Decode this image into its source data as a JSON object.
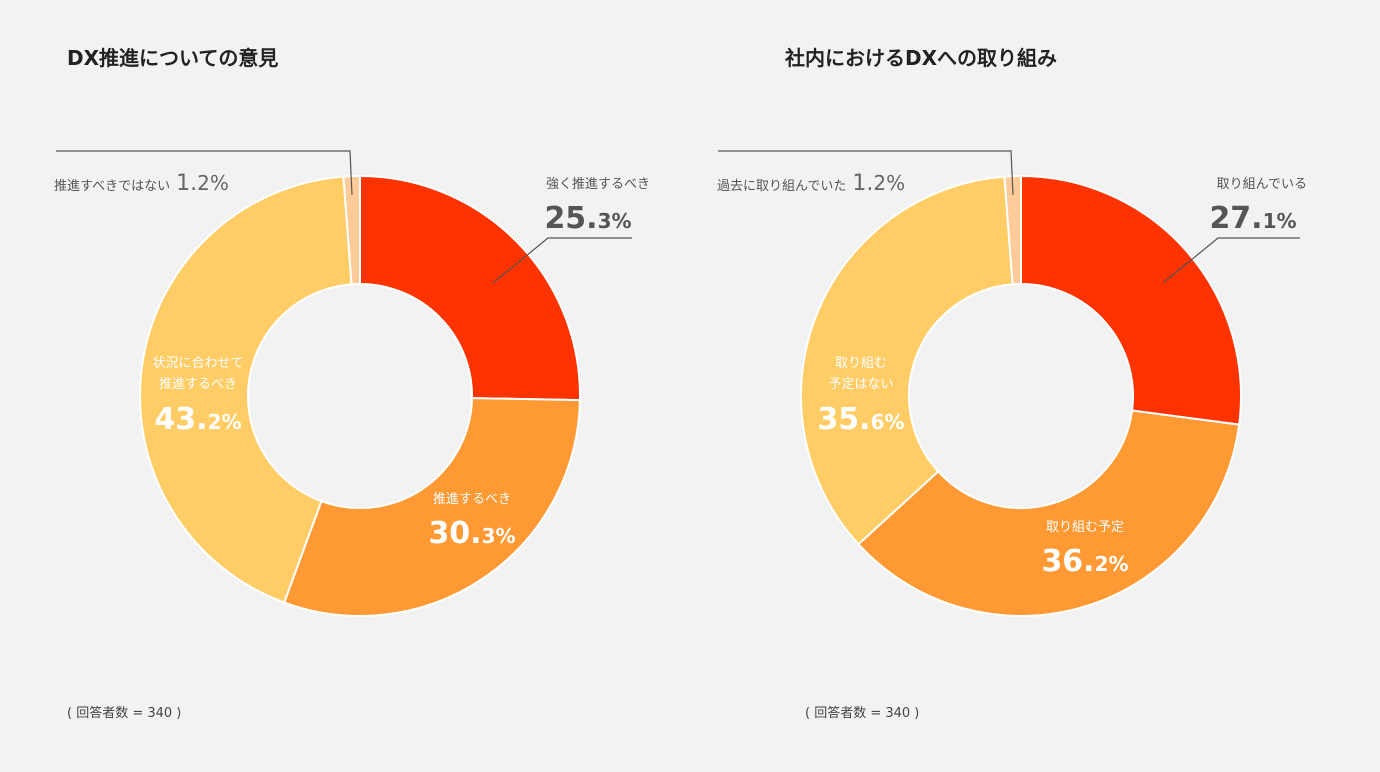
{
  "colors": {
    "strong": "#FF3300",
    "should": "#FF9933",
    "depends": "#FFCC66",
    "small": "#FFCC99",
    "background": "#F2F2F2"
  },
  "chart_data": [
    {
      "type": "pie",
      "variant": "donut",
      "title": "DX推進についての意見",
      "note": "( 回答者数 = 340 )",
      "slices": [
        {
          "label": "強く推進するべき",
          "value": 25.3,
          "big": "25.",
          "small": "3%"
        },
        {
          "label": "推進するべき",
          "value": 30.3,
          "big": "30.",
          "small": "3%"
        },
        {
          "label": "状況に合わせて推進するべき",
          "lines": [
            "状況に合わせて",
            "推進するべき"
          ],
          "value": 43.2,
          "big": "43.",
          "small": "2%"
        },
        {
          "label": "推進すべきではない",
          "value": 1.2,
          "big": "1.",
          "small": "2%"
        }
      ]
    },
    {
      "type": "pie",
      "variant": "donut",
      "title": "社内におけるDXへの取り組み",
      "note": "( 回答者数 = 340 )",
      "slices": [
        {
          "label": "取り組んでいる",
          "value": 27.1,
          "big": "27.",
          "small": "1%"
        },
        {
          "label": "取り組む予定",
          "value": 36.2,
          "big": "36.",
          "small": "2%"
        },
        {
          "label": "取り組む予定はない",
          "lines": [
            "取り組む",
            "予定はない"
          ],
          "value": 35.6,
          "big": "35.",
          "small": "6%"
        },
        {
          "label": "過去に取り組んでいた",
          "value": 1.2,
          "big": "1.",
          "small": "2%"
        }
      ]
    }
  ]
}
